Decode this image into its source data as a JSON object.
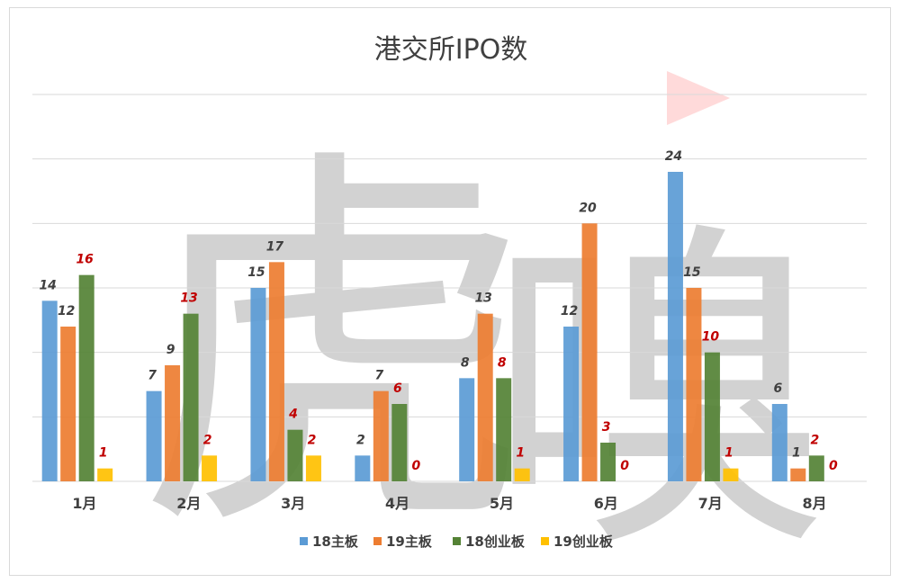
{
  "chart_data": {
    "type": "bar",
    "title": "港交所IPO数",
    "categories": [
      "1月",
      "2月",
      "3月",
      "4月",
      "5月",
      "6月",
      "7月",
      "8月"
    ],
    "series": [
      {
        "name": "18主板",
        "color": "#5b9bd5",
        "label_color": "#404040",
        "values": [
          14,
          7,
          15,
          2,
          8,
          12,
          24,
          6
        ]
      },
      {
        "name": "19主板",
        "color": "#ed7d31",
        "label_color": "#404040",
        "values": [
          12,
          9,
          17,
          7,
          13,
          20,
          15,
          1
        ]
      },
      {
        "name": "18创业板",
        "color": "#548235",
        "label_color": "#c00000",
        "values": [
          16,
          13,
          4,
          6,
          8,
          3,
          10,
          2
        ]
      },
      {
        "name": "19创业板",
        "color": "#ffc000",
        "label_color": "#c00000",
        "values": [
          1,
          2,
          2,
          0,
          1,
          0,
          1,
          0
        ]
      }
    ],
    "ylim": [
      0,
      30
    ],
    "ytick_step": 5,
    "grid": true,
    "legend_position": "bottom",
    "show_y_tick_labels": false
  },
  "watermark": {
    "text": "虎嗅",
    "color": "#8c8c8c",
    "accent_color": "#ff6b6b"
  }
}
